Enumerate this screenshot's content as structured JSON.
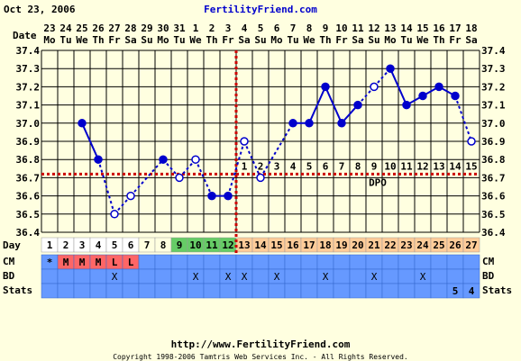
{
  "header": {
    "date": "Oct 23, 2006",
    "site": "FertilityFriend.com"
  },
  "footer": {
    "url": "http://www.FertilityFriend.com",
    "copyright": "Copyright 1998-2006 Tamtris Web Services Inc. - All Rights Reserved."
  },
  "row_labels": {
    "date": "Date",
    "day": "Day",
    "cm": "CM",
    "bd": "BD",
    "stats": "Stats"
  },
  "dpo_label": "DPO",
  "chart_data": {
    "type": "line",
    "xlabel": "",
    "ylabel": "",
    "ylim": [
      36.4,
      37.4
    ],
    "yticks": [
      "36.4",
      "36.5",
      "36.6",
      "36.7",
      "36.8",
      "36.9",
      "37.0",
      "37.1",
      "37.2",
      "37.3",
      "37.4"
    ],
    "dates": [
      "23",
      "24",
      "25",
      "26",
      "27",
      "28",
      "29",
      "30",
      "31",
      "1",
      "2",
      "3",
      "4",
      "5",
      "6",
      "7",
      "8",
      "9",
      "10",
      "11",
      "12",
      "13",
      "14",
      "15",
      "16",
      "17",
      "18"
    ],
    "weekdays": [
      "Mo",
      "Tu",
      "We",
      "Th",
      "Fr",
      "Sa",
      "Su",
      "Mo",
      "Tu",
      "We",
      "Th",
      "Fr",
      "Sa",
      "Su",
      "Mo",
      "Tu",
      "We",
      "Th",
      "Fr",
      "Sa",
      "Su",
      "Mo",
      "Tu",
      "We",
      "Th",
      "Fr",
      "Sa"
    ],
    "cycle_days": [
      "1",
      "2",
      "3",
      "4",
      "5",
      "6",
      "7",
      "8",
      "9",
      "10",
      "11",
      "12",
      "13",
      "14",
      "15",
      "16",
      "17",
      "18",
      "19",
      "20",
      "21",
      "22",
      "23",
      "24",
      "25",
      "26",
      "27"
    ],
    "temperatures": [
      null,
      null,
      37.0,
      36.8,
      36.5,
      36.6,
      null,
      36.8,
      36.7,
      36.8,
      36.6,
      36.6,
      36.9,
      36.7,
      null,
      37.0,
      37.0,
      37.2,
      37.0,
      37.1,
      37.2,
      37.3,
      37.1,
      37.15,
      37.2,
      37.15,
      36.9
    ],
    "open_points": [
      false,
      false,
      false,
      false,
      true,
      true,
      false,
      false,
      true,
      true,
      false,
      false,
      true,
      true,
      false,
      false,
      false,
      false,
      false,
      false,
      true,
      false,
      false,
      false,
      false,
      false,
      true
    ],
    "coverline": 36.72,
    "ovulation_day": 12,
    "dpo": [
      "1",
      "2",
      "3",
      "4",
      "5",
      "6",
      "7",
      "8",
      "9",
      "10",
      "11",
      "12",
      "13",
      "14",
      "15"
    ],
    "day_colors": {
      "menstrual": "#ffffff",
      "follicular": "#ffffe0",
      "fertile": "#66cc66",
      "luteal": "#ffcc99"
    },
    "cervical_mucus": [
      "*",
      "M",
      "M",
      "M",
      "L",
      "L",
      "",
      "",
      "",
      "",
      "",
      "",
      "",
      "",
      "",
      "",
      "",
      "",
      "",
      "",
      "",
      "",
      "",
      "",
      "",
      "",
      ""
    ],
    "intercourse": [
      "",
      "",
      "",
      "",
      "X",
      "",
      "",
      "",
      "",
      "X",
      "",
      "X",
      "X",
      "",
      "X",
      "",
      "",
      "X",
      "",
      "",
      "X",
      "",
      "",
      "X",
      "",
      "",
      ""
    ],
    "stats": [
      "",
      "",
      "",
      "",
      "",
      "",
      "",
      "",
      "",
      "",
      "",
      "",
      "",
      "",
      "",
      "",
      "",
      "",
      "",
      "",
      "",
      "",
      "",
      "",
      "",
      "5",
      "4"
    ],
    "colors": {
      "line": "#0000cc",
      "grid": "#000000",
      "coverline": "#cc0000",
      "row_blue": "#6699ff",
      "cm_red": "#ff6666"
    }
  }
}
